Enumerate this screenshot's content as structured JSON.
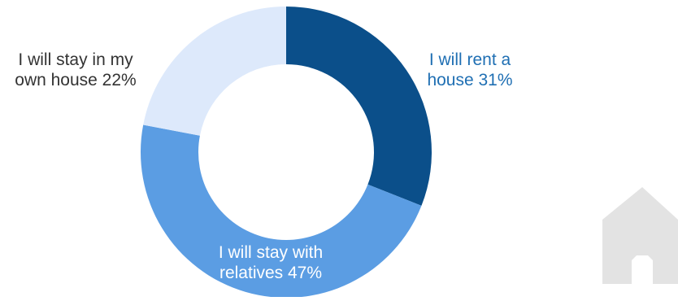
{
  "chart_data": {
    "type": "pie",
    "variant": "donut",
    "slices": [
      {
        "line1": "I will rent a",
        "line2": "house 31%",
        "value": 31,
        "color": "#0b4f8a",
        "label_color": "#1f6fb3"
      },
      {
        "line1": "I will stay with",
        "line2": "relatives 47%",
        "value": 47,
        "color": "#5b9de3",
        "label_color": "#ffffff"
      },
      {
        "line1": "I will stay in my",
        "line2": "own house 22%",
        "value": 22,
        "color": "#dde9fb",
        "label_color": "#333333"
      }
    ]
  },
  "decor": {
    "icon": "house-icon",
    "icon_color": "#e3e3e3"
  }
}
